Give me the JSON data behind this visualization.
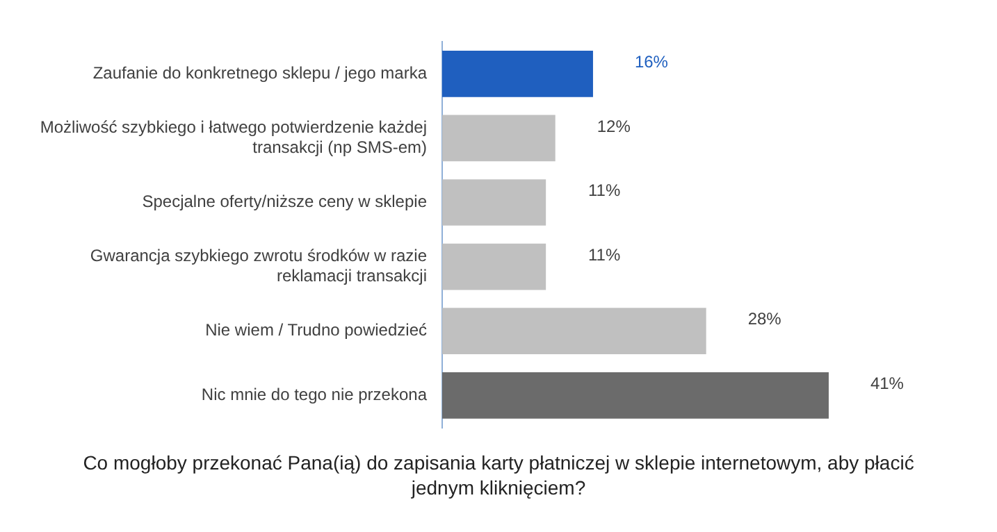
{
  "chart_data": {
    "type": "bar",
    "orientation": "horizontal",
    "title": "Co mogłoby przekonać Pana(ią) do zapisania karty płatniczej w sklepie internetowym, aby płacić jednym kliknięciem?",
    "categories": [
      "Zaufanie do konkretnego sklepu / jego marka",
      "Możliwość szybkiego i łatwego potwierdzenie każdej transakcji (np SMS-em)",
      "Specjalne oferty/niższe ceny w sklepie",
      "Gwarancja szybkiego zwrotu środków w razie reklamacji transakcji",
      "Nie wiem / Trudno powiedzieć",
      "Nic mnie do tego nie przekona"
    ],
    "values": [
      16,
      12,
      11,
      11,
      28,
      41
    ],
    "colors": [
      "#1f5fbf",
      "#c0c0c0",
      "#c0c0c0",
      "#c0c0c0",
      "#c0c0c0",
      "#6b6b6b"
    ],
    "value_labels": [
      "16%",
      "12%",
      "11%",
      "11%",
      "28%",
      "41%"
    ],
    "grid": false,
    "legend": false,
    "tick_labels": "y"
  }
}
